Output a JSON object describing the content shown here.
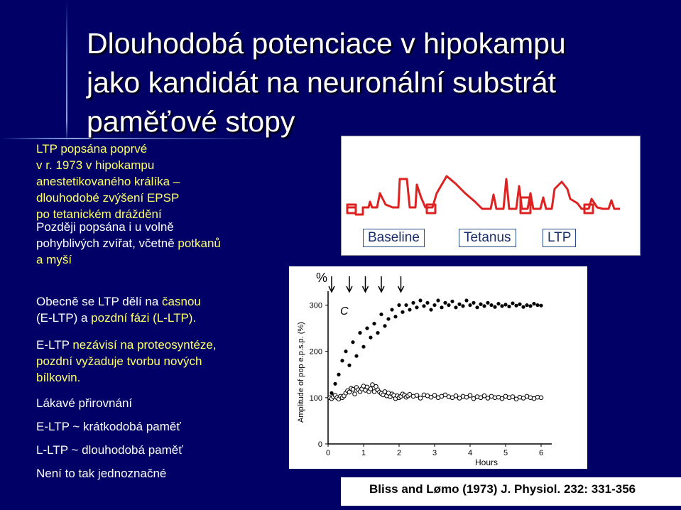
{
  "title": {
    "line1": "Dlouhodobá potenciace v hipokampu",
    "line2": "jako kandidát na neuronální substrát",
    "line3": "paměťové stopy"
  },
  "text": {
    "p1": [
      "LTP popsána poprvé",
      "v r. 1973 v hipokampu",
      "anestetikovaného králíka –",
      "dlouhodobé zvýšení EPSP",
      "po tetanickém dráždění"
    ],
    "p2a": "Později popsána i u volně",
    "p2b": "pohyblivých zvířat, včetně ",
    "p2c": "potkanů",
    "p2d": "a myší",
    "p3a": "Obecně se LTP dělí na ",
    "p3b": "časnou",
    "p3c": "(E-LTP)",
    "p3d": " a ",
    "p3e": "pozdní fázi (L-LTP).",
    "p4a": "E-LTP ",
    "p4b": "nezávisí na proteosyntéze",
    "p4c": ",",
    "p4d": "pozdní vyžaduje tvorbu nových",
    "p4e": "bílkovin.",
    "p5": "Lákavé přirovnání",
    "p6": "E-LTP ~ krátkodobá paměť",
    "p7": "L-LTP ~ dlouhodobá paměť",
    "p8": "Není to tak jednoznačné"
  },
  "diagram": {
    "labels": [
      "Baseline",
      "Tetanus",
      "LTP"
    ]
  },
  "plot": {
    "percent_symbol": "%",
    "panel_letter": "C",
    "ylabel": "Amplitude of pop e.p.s.p. (%)",
    "xlabel": "Hours",
    "yticks": [
      "300",
      "200",
      "100",
      "0"
    ],
    "xticks": [
      "0",
      "1",
      "2",
      "3",
      "4",
      "5",
      "6"
    ]
  },
  "chart_data": {
    "type": "scatter",
    "title": "",
    "xlabel": "Hours",
    "ylabel": "Amplitude of pop e.p.s.p. (%)",
    "xlim": [
      0,
      6.3
    ],
    "ylim": [
      0,
      330
    ],
    "tetanus_arrows_hours": [
      0.1,
      0.6,
      1.05,
      1.5,
      2.05
    ],
    "series": [
      {
        "x": [
          0.05,
          0.1,
          0.15,
          0.2,
          0.25,
          0.3,
          0.35,
          0.4,
          0.45,
          0.5,
          0.55,
          0.6,
          0.65,
          0.7,
          0.75,
          0.8,
          0.85,
          0.9,
          0.95,
          1.0,
          1.05,
          1.1,
          1.15,
          1.2,
          1.25,
          1.3,
          1.35,
          1.4,
          1.45,
          1.5,
          1.55,
          1.6,
          1.65,
          1.7,
          1.75,
          1.8,
          1.85,
          1.9,
          1.95,
          2.0,
          2.05,
          2.1,
          2.15,
          2.2,
          2.25,
          2.3,
          2.4,
          2.5,
          2.6,
          2.7,
          2.8,
          2.9,
          3.0,
          3.1,
          3.2,
          3.3,
          3.4,
          3.5,
          3.6,
          3.7,
          3.8,
          3.9,
          4.0,
          4.1,
          4.2,
          4.3,
          4.4,
          4.5,
          4.6,
          4.7,
          4.8,
          4.9,
          5.0,
          5.1,
          5.2,
          5.3,
          5.4,
          5.5,
          5.6,
          5.7,
          5.8,
          5.9,
          6.0
        ],
        "y": [
          100,
          98,
          102,
          105,
          100,
          97,
          103,
          100,
          104,
          110,
          115,
          112,
          120,
          118,
          108,
          122,
          117,
          113,
          119,
          125,
          116,
          123,
          113,
          119,
          128,
          113,
          124,
          117,
          112,
          109,
          106,
          113,
          104,
          110,
          102,
          108,
          105,
          98,
          104,
          100,
          103,
          108,
          105,
          101,
          104,
          107,
          103,
          105,
          99,
          106,
          104,
          101,
          105,
          100,
          103,
          106,
          102,
          100,
          104,
          99,
          103,
          101,
          105,
          98,
          102,
          100,
          104,
          99,
          103,
          100,
          101,
          98,
          103,
          100,
          102,
          97,
          101,
          99,
          103,
          100,
          98,
          101,
          100
        ]
      },
      {
        "x": [
          0.1,
          0.2,
          0.3,
          0.4,
          0.5,
          0.6,
          0.7,
          0.8,
          0.9,
          1.0,
          1.1,
          1.2,
          1.3,
          1.4,
          1.5,
          1.6,
          1.7,
          1.8,
          1.9,
          2.0,
          2.1,
          2.2,
          2.3,
          2.4,
          2.5,
          2.6,
          2.7,
          2.8,
          2.9,
          3.0,
          3.1,
          3.2,
          3.3,
          3.4,
          3.5,
          3.6,
          3.7,
          3.8,
          3.9,
          4.0,
          4.1,
          4.2,
          4.3,
          4.4,
          4.5,
          4.6,
          4.7,
          4.8,
          4.9,
          5.0,
          5.1,
          5.2,
          5.3,
          5.4,
          5.5,
          5.6,
          5.7,
          5.8,
          5.9,
          6.0
        ],
        "y": [
          110,
          130,
          150,
          180,
          200,
          170,
          220,
          190,
          240,
          210,
          250,
          230,
          260,
          240,
          280,
          255,
          270,
          290,
          275,
          300,
          285,
          300,
          290,
          305,
          295,
          310,
          298,
          305,
          290,
          300,
          310,
          295,
          305,
          300,
          308,
          295,
          302,
          298,
          310,
          300,
          305,
          295,
          302,
          298,
          305,
          300,
          296,
          303,
          298,
          301,
          297,
          304,
          299,
          302,
          296,
          300,
          298,
          303,
          300,
          299
        ]
      }
    ]
  },
  "citation": "Bliss and Lømo (1973) J. Physiol. 232: 331-356",
  "colors": {
    "background": "#000066",
    "accent_text": "#ffff66",
    "trace": "#dd2222"
  }
}
